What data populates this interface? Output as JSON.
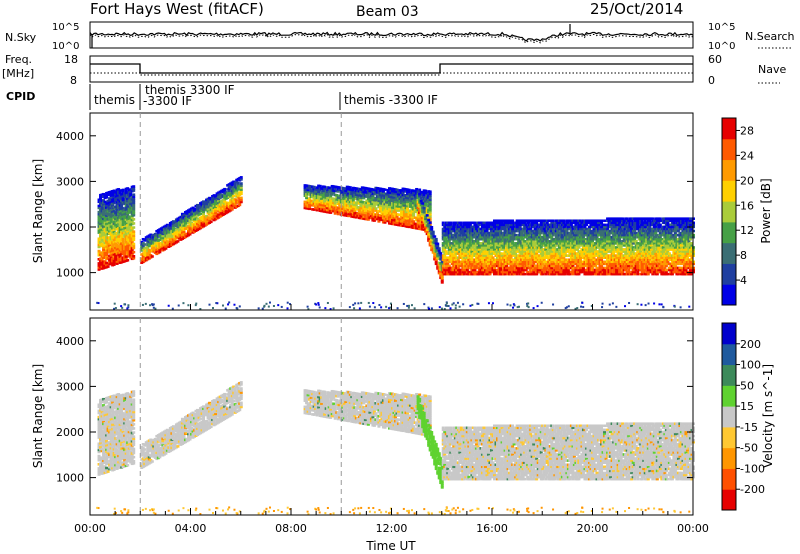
{
  "header": {
    "station": "Fort Hays West (fitACF)",
    "beam": "Beam 03",
    "date": "25/Oct/2014"
  },
  "noise_panel": {
    "left_label": "N.Sky",
    "right_label": "N.Search",
    "tick_top": "10^5",
    "tick_bottom": "10^0"
  },
  "freq_panel": {
    "left_label": "Freq.",
    "left_unit": "[MHz]",
    "right_label": "Nave",
    "left_ticks": [
      "18",
      "8"
    ],
    "right_ticks": [
      "60",
      "0"
    ]
  },
  "cpid": {
    "label": "CPID",
    "segments": [
      {
        "start": 0,
        "end": 2,
        "line1": "themis",
        "line2": ""
      },
      {
        "start": 2,
        "end": 10,
        "line1": "themis 3300 IF",
        "line2": "-3300 IF"
      },
      {
        "start": 10,
        "end": 24,
        "line1": "themis -3300 IF",
        "line2": ""
      }
    ]
  },
  "colors": {
    "power": [
      "#0000e6",
      "#1f3fa0",
      "#3a6e74",
      "#46a046",
      "#aacc3a",
      "#ffd000",
      "#ff9a00",
      "#ff5a00",
      "#e60000"
    ],
    "velocity": [
      "#0000cc",
      "#1f5a9e",
      "#3c8a5a",
      "#5fd230",
      "#c8c8c8",
      "#ffc832",
      "#ff9600",
      "#ff5000",
      "#e60000"
    ]
  },
  "chart_data": [
    {
      "type": "heatmap",
      "name": "power",
      "ylabel": "Slant Range [km]",
      "xlabel": "Time UT",
      "x_ticks": [
        "00:00",
        "04:00",
        "08:00",
        "12:00",
        "16:00",
        "20:00",
        "00:00"
      ],
      "xlim": [
        0,
        24
      ],
      "y_ticks": [
        1000,
        2000,
        3000,
        4000
      ],
      "ylim": [
        180,
        4500
      ],
      "colorbar": {
        "label": "Power [dB]",
        "ticks": [
          4,
          8,
          12,
          16,
          20,
          24,
          28
        ],
        "range": [
          0,
          30
        ]
      },
      "vertical_markers": [
        2,
        10
      ],
      "echo_regions": [
        {
          "t0": 0.3,
          "t1": 1.7,
          "r_low_start": 1050,
          "r_low_end": 1300,
          "r_high_start": 2700,
          "r_high_end": 2900
        },
        {
          "t0": 2.0,
          "t1": 6.0,
          "r_low_start": 1200,
          "r_low_end": 2500,
          "r_high_start": 1700,
          "r_high_end": 3100
        },
        {
          "t0": 8.5,
          "t1": 13.5,
          "r_low_start": 2400,
          "r_low_end": 1900,
          "r_high_start": 2900,
          "r_high_end": 2800
        },
        {
          "t0": 13.0,
          "t1": 14.0,
          "r_low_start": 2400,
          "r_low_end": 700,
          "r_high_start": 2800,
          "r_high_end": 1300
        },
        {
          "t0": 14.0,
          "t1": 24.0,
          "r_low_start": 950,
          "r_low_end": 950,
          "r_high_start": 2100,
          "r_high_end": 2200
        }
      ]
    },
    {
      "type": "heatmap",
      "name": "velocity",
      "ylabel": "Slant Range [km]",
      "xlabel": "Time UT",
      "x_ticks": [
        "00:00",
        "04:00",
        "08:00",
        "12:00",
        "16:00",
        "20:00",
        "00:00"
      ],
      "xlim": [
        0,
        24
      ],
      "y_ticks": [
        1000,
        2000,
        3000,
        4000
      ],
      "ylim": [
        180,
        4500
      ],
      "colorbar": {
        "label": "Velocity [m s^-1]",
        "ticks": [
          200,
          100,
          50,
          15,
          -15,
          -50,
          -100,
          -200
        ]
      },
      "vertical_markers": [
        2,
        10
      ]
    }
  ]
}
